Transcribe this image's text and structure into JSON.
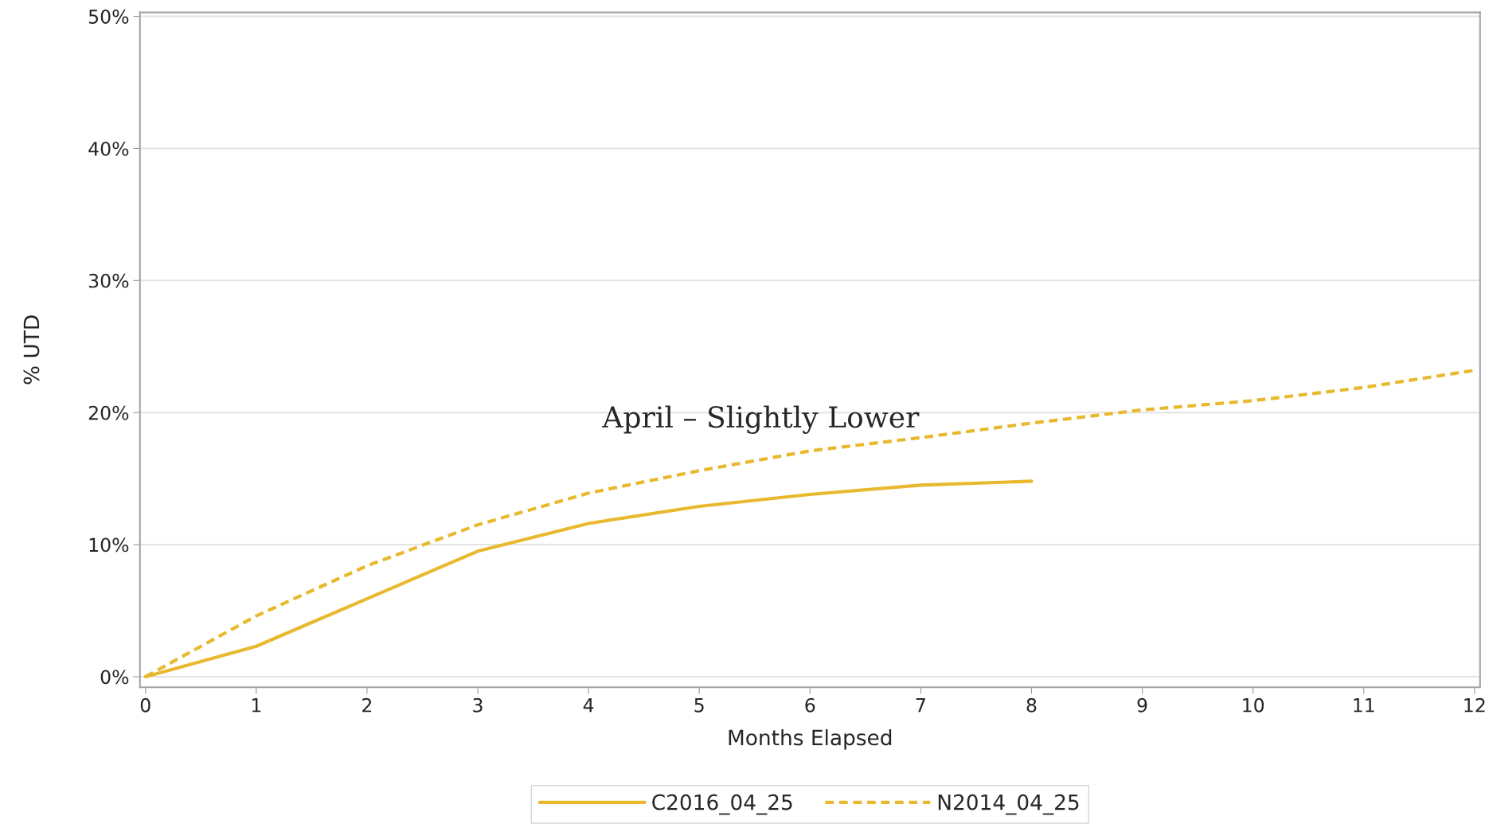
{
  "chart_data": {
    "type": "line",
    "xlabel": "Months Elapsed",
    "ylabel": "% UTD",
    "x": [
      0,
      1,
      2,
      3,
      4,
      5,
      6,
      7,
      8,
      9,
      10,
      11,
      12
    ],
    "series": [
      {
        "name": "C2016_04_25",
        "color": "#e8b92e",
        "line_style": "solid",
        "values": [
          0,
          2.3,
          5.9,
          9.5,
          11.6,
          12.9,
          13.8,
          14.5,
          14.8,
          null,
          null,
          null,
          null
        ]
      },
      {
        "name": "N2014_04_25",
        "color": "#e8b92e",
        "line_style": "dashed",
        "values": [
          0,
          4.6,
          8.4,
          11.5,
          13.9,
          15.6,
          17.1,
          18.1,
          19.2,
          20.2,
          20.9,
          21.9,
          23.2
        ]
      }
    ],
    "annotations": [
      "April – Slightly Lower"
    ],
    "xlim": [
      -0.05,
      12.05
    ],
    "xticks": [
      0,
      1,
      2,
      3,
      4,
      5,
      6,
      7,
      8,
      9,
      10,
      11,
      12
    ],
    "ylim": [
      -0.8,
      50.3
    ],
    "yticks": [
      {
        "value": 0,
        "label": "0%"
      },
      {
        "value": 10,
        "label": "10%"
      },
      {
        "value": 20,
        "label": "20%"
      },
      {
        "value": 30,
        "label": "30%"
      },
      {
        "value": 40,
        "label": "40%"
      },
      {
        "value": 50,
        "label": "50%"
      }
    ],
    "grid": "y",
    "legend": "bottom",
    "marker": "none"
  }
}
